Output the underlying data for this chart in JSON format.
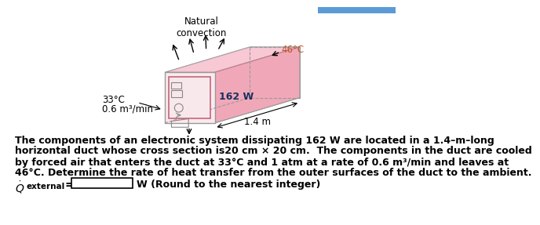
{
  "title_line1": "The components of an electronic system dissipating 162 W are located in a 1.4–m–long",
  "title_line2": "horizontal duct whose cross section is20 cm × 20 cm.  The components in the duct are cooled",
  "title_line3": "by forced air that enters the duct at 33°C and 1 atm at a rate of 0.6 m³/min and leaves at",
  "title_line4": "46°C. Determine the rate of heat transfer from the outer surfaces of the duct to the ambient.",
  "answer_unit": "W (Round to the nearest integer)",
  "label_natural_convection": "Natural\nconvection",
  "label_46C": "46°C",
  "label_33C": "33°C",
  "label_flow_rate": "0.6 m³/min",
  "label_162W": "162 W",
  "label_1_4m": "1.4 m",
  "top_face_color": "#f5c0cc",
  "right_face_color": "#e8909c",
  "bottom_face_color": "#f9d8e0",
  "front_face_fill": "#f9e0e6",
  "front_face_inner": "#f5e8ec",
  "duct_edge_color": "#999999",
  "comp_color": "#888888",
  "background_color": "#ffffff",
  "blue_bar_color": "#5b9bd5",
  "text_color_body": "#000000",
  "label_color_46C": "#c05020",
  "label_color_33C": "#000000"
}
